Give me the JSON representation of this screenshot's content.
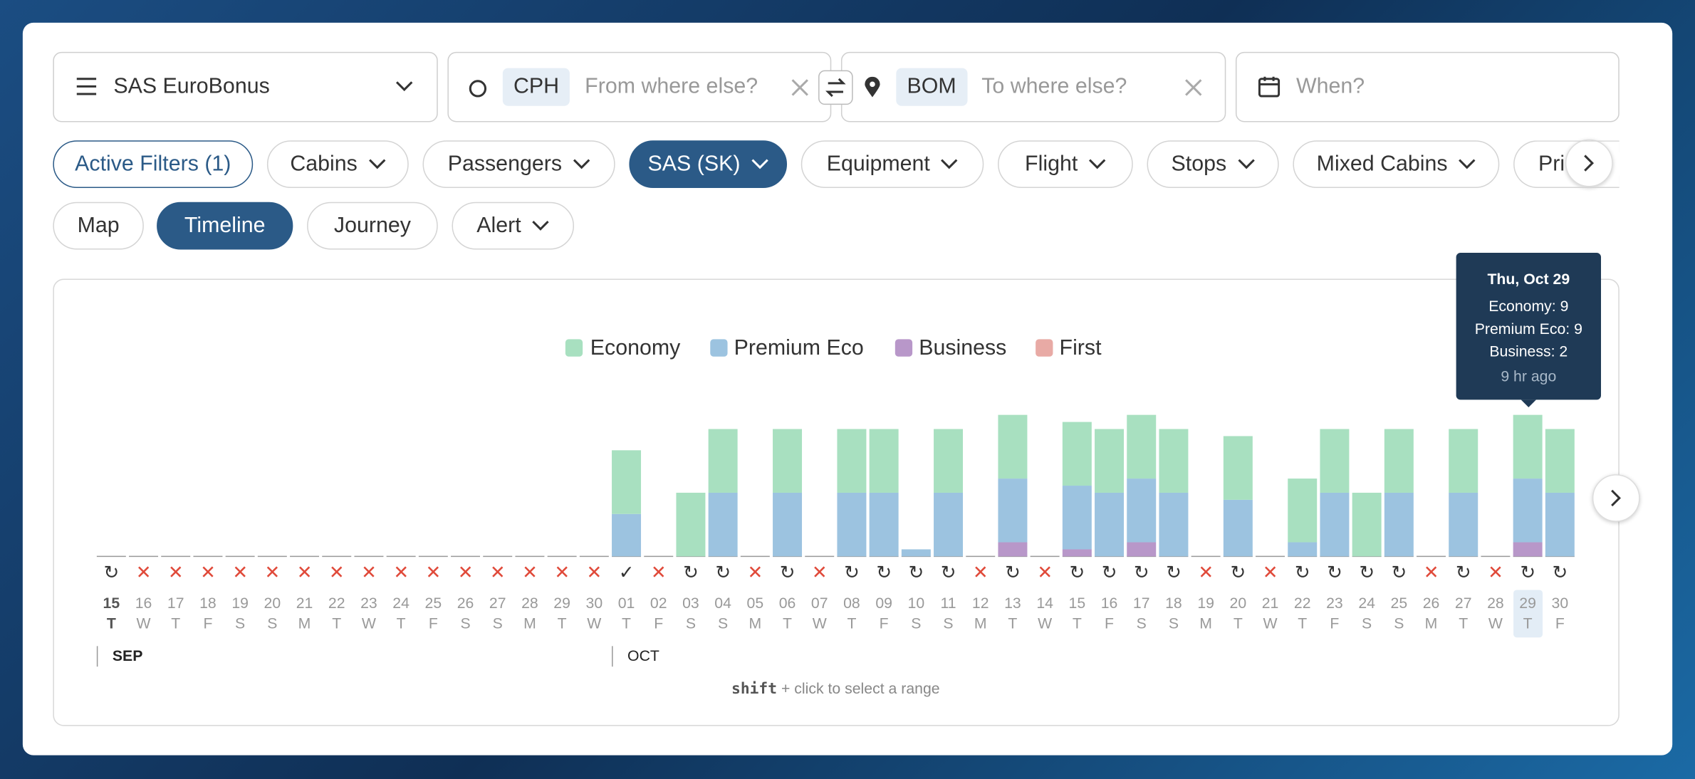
{
  "header": {
    "program": "SAS EuroBonus",
    "origin": "CPH",
    "origin_placeholder": "From where else?",
    "destination": "BOM",
    "destination_placeholder": "To where else?",
    "date_placeholder": "When?"
  },
  "filters": [
    "Active Filters (1)",
    "Cabins",
    "Passengers",
    "SAS (SK)",
    "Equipment",
    "Flight",
    "Stops",
    "Mixed Cabins",
    "Pri"
  ],
  "views": [
    "Map",
    "Timeline",
    "Journey",
    "Alert"
  ],
  "chart_data": {
    "type": "bar",
    "stacked": true,
    "categories": [
      "15",
      "16",
      "17",
      "18",
      "19",
      "20",
      "21",
      "22",
      "23",
      "24",
      "25",
      "26",
      "27",
      "28",
      "29",
      "30",
      "01",
      "02",
      "03",
      "04",
      "05",
      "06",
      "07",
      "08",
      "09",
      "10",
      "11",
      "12",
      "13",
      "14",
      "15",
      "16",
      "17",
      "18",
      "19",
      "20",
      "21",
      "22",
      "23",
      "24",
      "25",
      "26",
      "27",
      "28",
      "29",
      "30"
    ],
    "weekdays": [
      "T",
      "W",
      "T",
      "F",
      "S",
      "S",
      "M",
      "T",
      "W",
      "T",
      "F",
      "S",
      "S",
      "M",
      "T",
      "W",
      "T",
      "F",
      "S",
      "S",
      "M",
      "T",
      "W",
      "T",
      "F",
      "S",
      "S",
      "M",
      "T",
      "W",
      "T",
      "F",
      "S",
      "S",
      "M",
      "T",
      "W",
      "T",
      "F",
      "S",
      "S",
      "M",
      "T",
      "W",
      "T",
      "F"
    ],
    "months": [
      "SEP",
      "OCT"
    ],
    "status": [
      "↻",
      "✕",
      "✕",
      "✕",
      "✕",
      "✕",
      "✕",
      "✕",
      "✕",
      "✕",
      "✕",
      "✕",
      "✕",
      "✕",
      "✕",
      "✕",
      "✓",
      "✕",
      "↻",
      "↻",
      "✕",
      "↻",
      "✕",
      "↻",
      "↻",
      "↻",
      "↻",
      "✕",
      "↻",
      "✕",
      "↻",
      "↻",
      "↻",
      "↻",
      "✕",
      "↻",
      "✕",
      "↻",
      "↻",
      "↻",
      "↻",
      "✕",
      "↻",
      "✕",
      "↻",
      "↻"
    ],
    "series": [
      {
        "name": "Economy",
        "color": "#a8e0c0",
        "values": [
          0,
          0,
          0,
          0,
          0,
          0,
          0,
          0,
          0,
          0,
          0,
          0,
          0,
          0,
          0,
          0,
          9,
          0,
          9,
          9,
          0,
          9,
          0,
          9,
          9,
          0,
          9,
          0,
          9,
          0,
          9,
          9,
          9,
          9,
          0,
          9,
          0,
          9,
          9,
          9,
          9,
          0,
          9,
          0,
          9,
          9
        ]
      },
      {
        "name": "Premium Eco",
        "color": "#9cc3e0",
        "values": [
          0,
          0,
          0,
          0,
          0,
          0,
          0,
          0,
          0,
          0,
          0,
          0,
          0,
          0,
          0,
          0,
          6,
          0,
          0,
          9,
          0,
          9,
          0,
          9,
          9,
          1,
          9,
          0,
          9,
          0,
          9,
          9,
          9,
          9,
          0,
          8,
          0,
          2,
          9,
          0,
          9,
          0,
          9,
          0,
          9,
          9
        ]
      },
      {
        "name": "Business",
        "color": "#b897c9",
        "values": [
          0,
          0,
          0,
          0,
          0,
          0,
          0,
          0,
          0,
          0,
          0,
          0,
          0,
          0,
          0,
          0,
          0,
          0,
          0,
          0,
          0,
          0,
          0,
          0,
          0,
          0,
          0,
          0,
          2,
          0,
          1,
          0,
          2,
          0,
          0,
          0,
          0,
          0,
          0,
          0,
          0,
          0,
          0,
          0,
          2,
          0
        ]
      },
      {
        "name": "First",
        "color": "#e8aaa5",
        "values": [
          0,
          0,
          0,
          0,
          0,
          0,
          0,
          0,
          0,
          0,
          0,
          0,
          0,
          0,
          0,
          0,
          0,
          0,
          0,
          0,
          0,
          0,
          0,
          0,
          0,
          0,
          0,
          0,
          0,
          0,
          0,
          0,
          0,
          0,
          0,
          0,
          0,
          0,
          0,
          0,
          0,
          0,
          0,
          0,
          0,
          0
        ]
      }
    ],
    "tooltip": {
      "title": "Thu, Oct 29",
      "lines": [
        "Economy: 9",
        "Premium Eco: 9",
        "Business: 2"
      ],
      "footer": "9 hr ago"
    },
    "hint": {
      "key": "shift",
      "text": "+ click to select a range"
    }
  }
}
